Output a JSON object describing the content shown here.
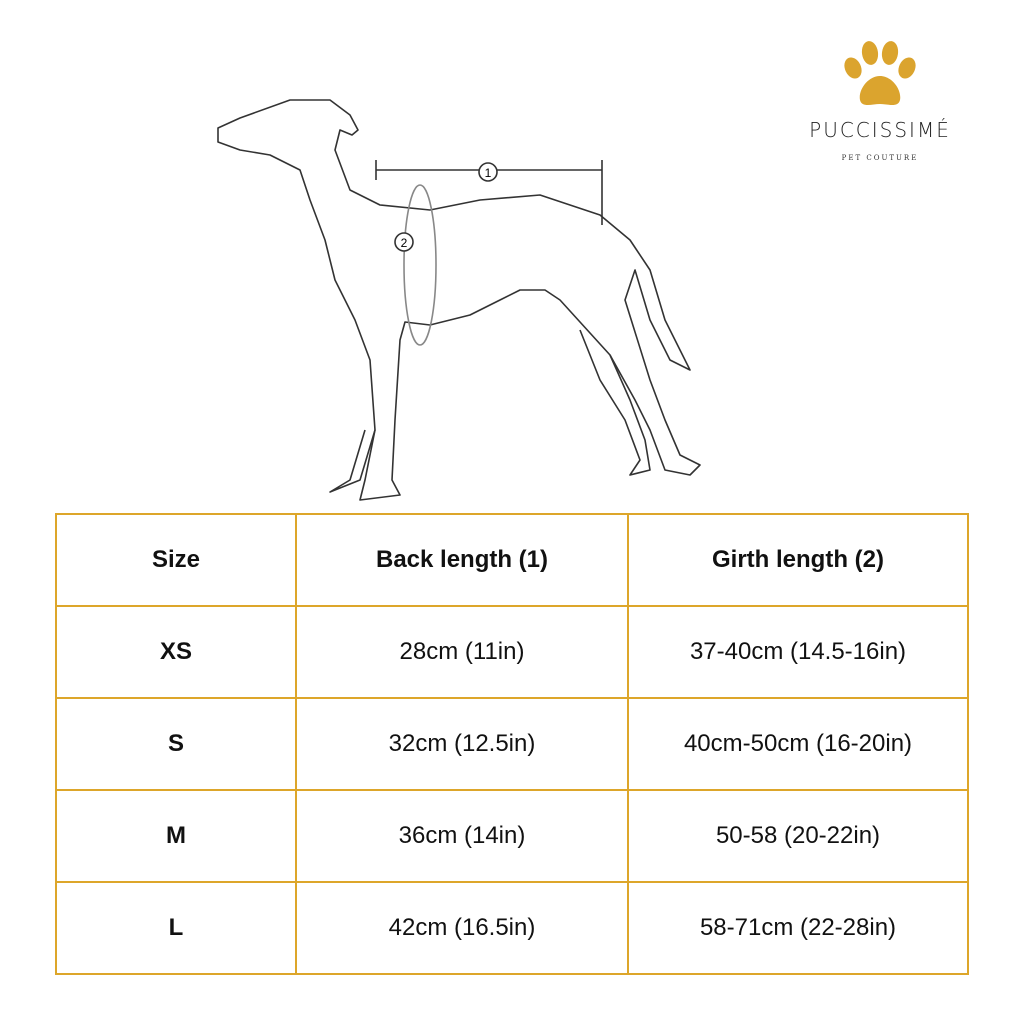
{
  "logo": {
    "brand": "PUCCISSIMÉ",
    "tagline": "PET COUTURE",
    "paw_color": "#DBA42E"
  },
  "diagram": {
    "marker_1": "1",
    "marker_2": "2"
  },
  "table": {
    "border_color": "#DDA62A",
    "headers": [
      "Size",
      "Back length (1)",
      "Girth length (2)"
    ],
    "rows": [
      [
        "XS",
        "28cm (11in)",
        "37-40cm (14.5-16in)"
      ],
      [
        "S",
        "32cm (12.5in)",
        "40cm-50cm (16-20in)"
      ],
      [
        "M",
        "36cm (14in)",
        "50-58 (20-22in)"
      ],
      [
        "L",
        "42cm (16.5in)",
        "58-71cm (22-28in)"
      ]
    ]
  }
}
